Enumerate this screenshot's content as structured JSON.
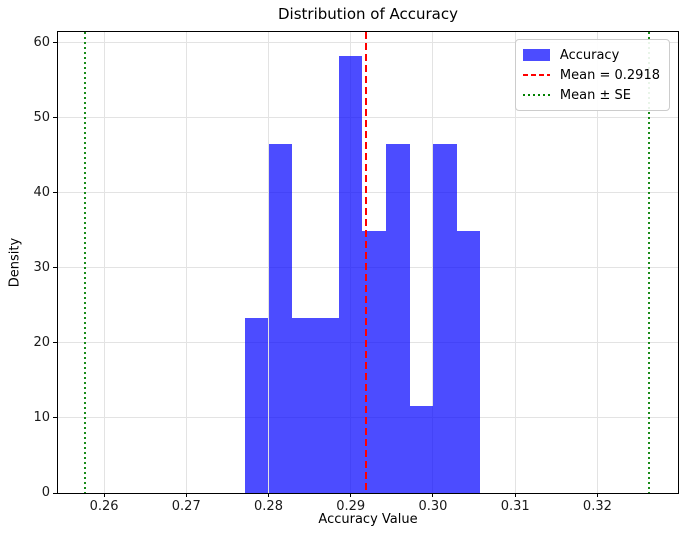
{
  "chart_data": {
    "type": "bar",
    "subtype": "histogram",
    "title": "Distribution of Accuracy",
    "xlabel": "Accuracy Value",
    "ylabel": "Density",
    "xlim": [
      0.2544,
      0.3298
    ],
    "ylim": [
      0,
      61.4
    ],
    "grid": true,
    "xticks": {
      "values": [
        0.26,
        0.27,
        0.28,
        0.29,
        0.3,
        0.31,
        0.32
      ],
      "labels": [
        "0.26",
        "0.27",
        "0.28",
        "0.29",
        "0.30",
        "0.31",
        "0.32"
      ]
    },
    "yticks": {
      "values": [
        0,
        10,
        20,
        30,
        40,
        50,
        60
      ],
      "labels": [
        "0",
        "10",
        "20",
        "30",
        "40",
        "50",
        "60"
      ]
    },
    "bins": {
      "edges": [
        0.2772,
        0.28,
        0.2829,
        0.2857,
        0.2886,
        0.2914,
        0.2943,
        0.2972,
        0.3,
        0.3029,
        0.3057
      ],
      "densities": [
        23.3,
        46.5,
        23.3,
        23.3,
        58.2,
        34.9,
        46.5,
        11.6,
        46.5,
        34.9
      ]
    },
    "mean": 0.2918,
    "mean_pm_se": [
      0.2577,
      0.3263
    ],
    "legend": {
      "position": "upper right",
      "entries": [
        {
          "label": "Accuracy",
          "type": "patch",
          "color": "rgba(0,0,255,0.7)"
        },
        {
          "label": "Mean = 0.2918",
          "type": "dashed-line",
          "color": "#ff0000"
        },
        {
          "label": "Mean ± SE",
          "type": "dotted-line",
          "color": "#008000"
        }
      ]
    },
    "colors": {
      "bar": "rgba(0,0,255,0.7)",
      "mean_line": "#ff0000",
      "se_line": "rgba(0,128,0,0.9)",
      "grid": "#e3e3e3",
      "spine": "#000000"
    }
  }
}
